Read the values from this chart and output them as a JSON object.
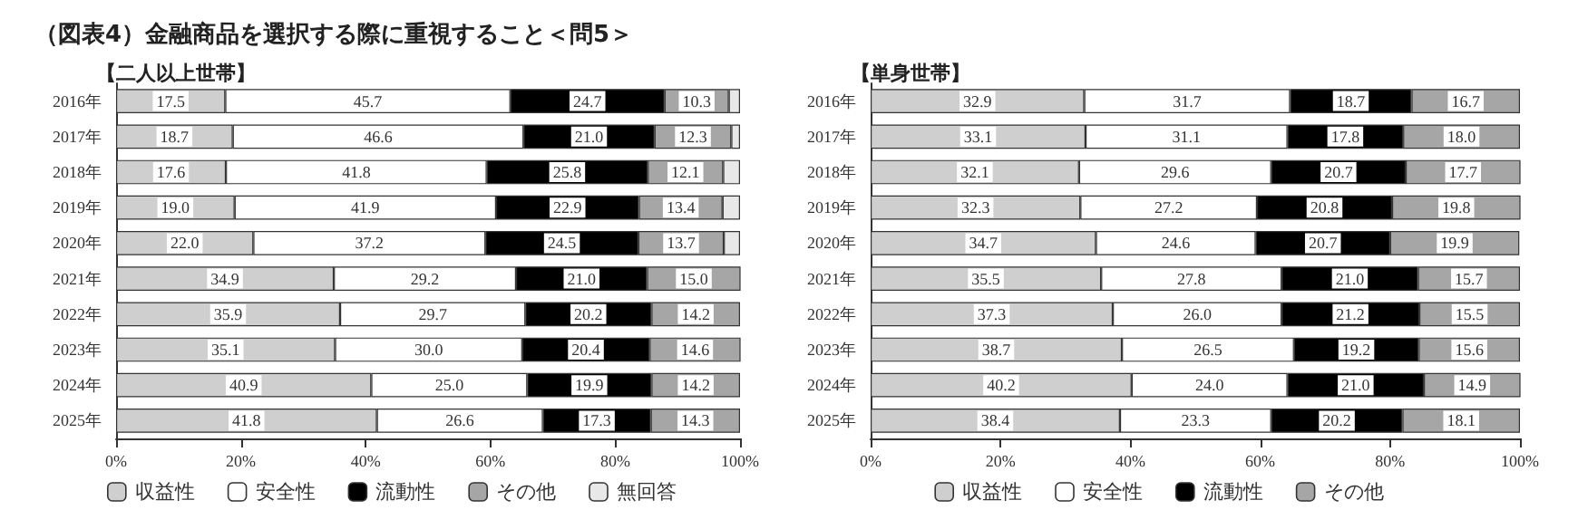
{
  "chart_data": [
    {
      "type": "bar",
      "orientation": "horizontal",
      "stacked": true,
      "title": "（図表4）金融商品を選択する際に重視すること＜問5＞",
      "subtitle": "【二人以上世帯】",
      "categories": [
        "2016年",
        "2017年",
        "2018年",
        "2019年",
        "2020年",
        "2021年",
        "2022年",
        "2023年",
        "2024年",
        "2025年"
      ],
      "series": [
        {
          "name": "収益性",
          "color": "#cfcfcf",
          "values": [
            17.5,
            18.7,
            17.6,
            19.0,
            22.0,
            34.9,
            35.9,
            35.1,
            40.9,
            41.8
          ],
          "value_labels": [
            "17.5",
            "18.7",
            "17.6",
            "19.0",
            "22.0",
            "34.9",
            "35.9",
            "35.1",
            "40.9",
            "41.8"
          ]
        },
        {
          "name": "安全性",
          "color": "#ffffff",
          "values": [
            45.7,
            46.6,
            41.8,
            41.9,
            37.2,
            29.2,
            29.7,
            30.0,
            25.0,
            26.6
          ],
          "value_labels": [
            "45.7",
            "46.6",
            "41.8",
            "41.9",
            "37.2",
            "29.2",
            "29.7",
            "30.0",
            "25.0",
            "26.6"
          ]
        },
        {
          "name": "流動性",
          "color": "#000000",
          "values": [
            24.7,
            21.0,
            25.8,
            22.9,
            24.5,
            21.0,
            20.2,
            20.4,
            19.9,
            17.3
          ],
          "value_labels": [
            "24.7",
            "21.0",
            "25.8",
            "22.9",
            "24.5",
            "21.0",
            "20.2",
            "20.4",
            "19.9",
            "17.3"
          ]
        },
        {
          "name": "その他",
          "color": "#a6a6a6",
          "values": [
            10.3,
            12.3,
            12.1,
            13.4,
            13.7,
            15.0,
            14.2,
            14.6,
            14.2,
            14.3
          ],
          "value_labels": [
            "10.3",
            "12.3",
            "12.1",
            "13.4",
            "13.7",
            "15.0",
            "14.2",
            "14.6",
            "14.2",
            "14.3"
          ]
        },
        {
          "name": "無回答",
          "color": "#e8e8e8",
          "values": [
            1.8,
            1.4,
            2.7,
            2.8,
            2.6,
            null,
            null,
            null,
            null,
            null
          ]
        }
      ],
      "xlim": [
        0,
        100
      ],
      "xticks": [
        {
          "value": 0,
          "label": "0%"
        },
        {
          "value": 20,
          "label": "20%"
        },
        {
          "value": 40,
          "label": "40%"
        },
        {
          "value": 60,
          "label": "60%"
        },
        {
          "value": 80,
          "label": "80%"
        },
        {
          "value": 100,
          "label": "100%"
        }
      ],
      "legend": "bottom",
      "grid": false
    },
    {
      "type": "bar",
      "orientation": "horizontal",
      "stacked": true,
      "subtitle": "【単身世帯】",
      "categories": [
        "2016年",
        "2017年",
        "2018年",
        "2019年",
        "2020年",
        "2021年",
        "2022年",
        "2023年",
        "2024年",
        "2025年"
      ],
      "series": [
        {
          "name": "収益性",
          "color": "#cfcfcf",
          "values": [
            32.9,
            33.1,
            32.1,
            32.3,
            34.7,
            35.5,
            37.3,
            38.7,
            40.2,
            38.4
          ],
          "value_labels": [
            "32.9",
            "33.1",
            "32.1",
            "32.3",
            "34.7",
            "35.5",
            "37.3",
            "38.7",
            "40.2",
            "38.4"
          ]
        },
        {
          "name": "安全性",
          "color": "#ffffff",
          "values": [
            31.7,
            31.1,
            29.6,
            27.2,
            24.6,
            27.8,
            26.0,
            26.5,
            24.0,
            23.3
          ],
          "value_labels": [
            "31.7",
            "31.1",
            "29.6",
            "27.2",
            "24.6",
            "27.8",
            "26.0",
            "26.5",
            "24.0",
            "23.3"
          ]
        },
        {
          "name": "流動性",
          "color": "#000000",
          "values": [
            18.7,
            17.8,
            20.7,
            20.8,
            20.7,
            21.0,
            21.2,
            19.2,
            21.0,
            20.2
          ],
          "value_labels": [
            "18.7",
            "17.8",
            "20.7",
            "20.8",
            "20.7",
            "21.0",
            "21.2",
            "19.2",
            "21.0",
            "20.2"
          ]
        },
        {
          "name": "その他",
          "color": "#a6a6a6",
          "values": [
            16.7,
            18.0,
            17.7,
            19.8,
            19.9,
            15.7,
            15.5,
            15.6,
            14.9,
            18.1
          ],
          "value_labels": [
            "16.7",
            "18.0",
            "17.7",
            "19.8",
            "19.9",
            "15.7",
            "15.5",
            "15.6",
            "14.9",
            "18.1"
          ]
        }
      ],
      "xlim": [
        0,
        100
      ],
      "xticks": [
        {
          "value": 0,
          "label": "0%"
        },
        {
          "value": 20,
          "label": "20%"
        },
        {
          "value": 40,
          "label": "40%"
        },
        {
          "value": 60,
          "label": "60%"
        },
        {
          "value": 80,
          "label": "80%"
        },
        {
          "value": 100,
          "label": "100%"
        }
      ],
      "legend": "bottom",
      "grid": false
    }
  ]
}
